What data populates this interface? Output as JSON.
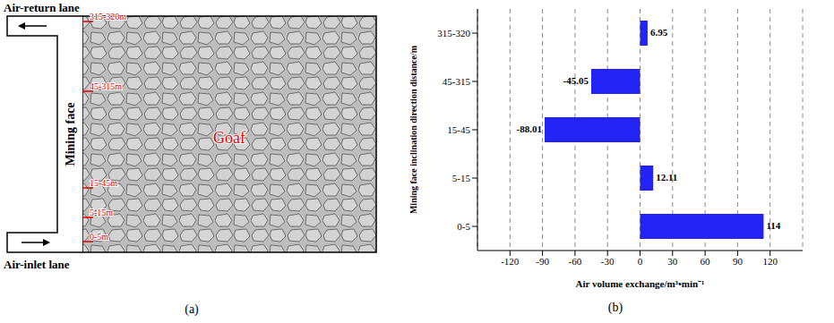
{
  "panel_a": {
    "label": "(a)",
    "top_lane": "Air-return lane",
    "bottom_lane": "Air-inlet lane",
    "face": "Mining face",
    "area": "Goaf",
    "face_sections": [
      "315-320m",
      "45-315m",
      "15-45m",
      "5-15m",
      "0-5m"
    ]
  },
  "chart_data": {
    "type": "bar",
    "title": "(b)",
    "orientation": "horizontal",
    "categories": [
      "0-5",
      "5-15",
      "15-45",
      "45-315",
      "315-320"
    ],
    "values": [
      114,
      12.11,
      -88.01,
      -45.05,
      6.95
    ],
    "color": "#2323f5",
    "x_label": "Air volume exchange/m³•min⁻¹",
    "y_label": "Mining face inclination direction distance/m",
    "xlim": [
      -150,
      150
    ],
    "xticks": [
      -120,
      -90,
      -60,
      -30,
      0,
      30,
      60,
      90,
      120
    ],
    "grid": true,
    "data_labels": true
  }
}
